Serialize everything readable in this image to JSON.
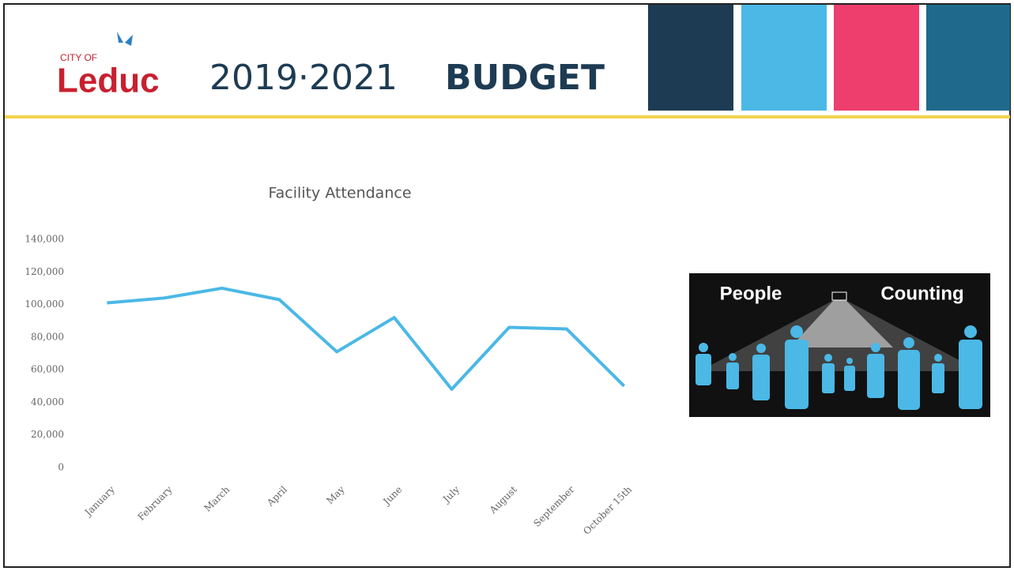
{
  "header": {
    "city_of": "CITY OF",
    "leduc": "Leduc",
    "years": "2019·2021",
    "budget": "BUDGET"
  },
  "image": {
    "left": "People",
    "right": "Counting"
  },
  "chart_data": {
    "type": "line",
    "title": "Facility Attendance",
    "categories": [
      "January",
      "February",
      "March",
      "April",
      "May",
      "June",
      "July",
      "August",
      "September",
      "October 15th"
    ],
    "values": [
      101000,
      104000,
      110000,
      103000,
      71000,
      92000,
      48000,
      86000,
      85000,
      50000
    ],
    "color": "#4bb8e6",
    "ylim": [
      0,
      140000
    ],
    "yticks": [
      0,
      {
        "value": 20000,
        "label": "20,000"
      },
      {
        "value": 40000,
        "label": "40,000"
      },
      {
        "value": 60000,
        "label": "60,000"
      },
      {
        "value": 80000,
        "label": "80,000"
      },
      {
        "value": 100000,
        "label": "100,000"
      },
      {
        "value": 120000,
        "label": "120,000"
      },
      {
        "value": 140000,
        "label": "140,000"
      }
    ],
    "grid": false
  }
}
